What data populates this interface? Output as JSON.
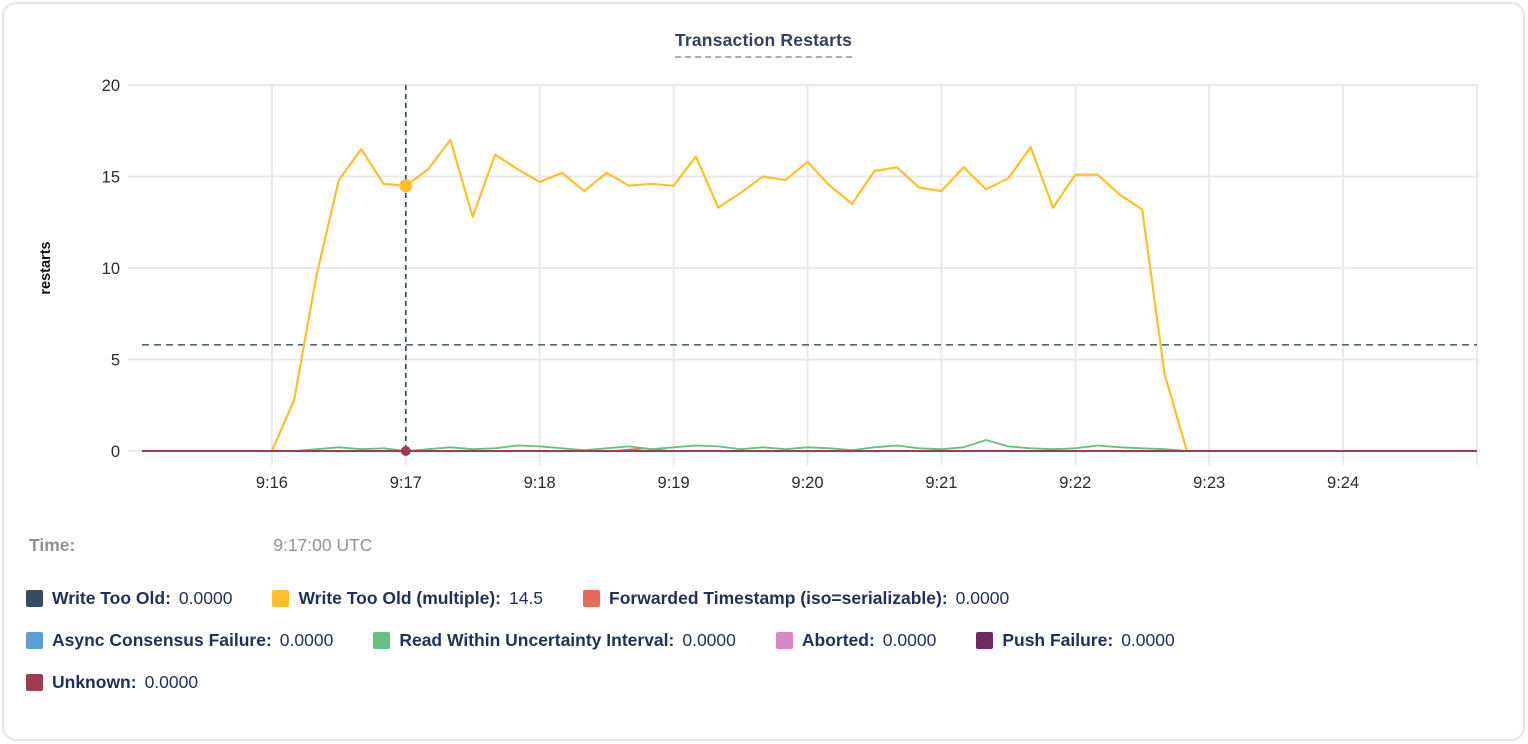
{
  "hover": {
    "time_label": "Time:",
    "time_value": "9:17:00 UTC"
  },
  "colors": {
    "write_too_old": "#3b4a63",
    "write_too_old_multiple": "#fdc02b",
    "forwarded_timestamp": "#e8695d",
    "async_consensus_failure": "#5c9fd4",
    "read_within_uncertainty": "#65c27e",
    "aborted": "#d787c1",
    "push_failure": "#6f2b62",
    "unknown": "#9e3d51",
    "threshold_line": "#51677a",
    "crosshair": "#2e4a5c",
    "gridline": "#e9e9e9",
    "axis_text": "#2b2b2b",
    "title_text": "#33415e"
  },
  "chart_data": {
    "type": "line",
    "title": "Transaction Restarts",
    "xlabel": "",
    "ylabel": "restarts",
    "ylim": [
      0,
      20
    ],
    "y_ticks": [
      0,
      5,
      10,
      15,
      20
    ],
    "xlim_minutes_after_9": [
      15.03,
      25.0
    ],
    "x_ticks": [
      {
        "t": 16,
        "label": "9:16"
      },
      {
        "t": 17,
        "label": "9:17"
      },
      {
        "t": 18,
        "label": "9:18"
      },
      {
        "t": 19,
        "label": "9:19"
      },
      {
        "t": 20,
        "label": "9:20"
      },
      {
        "t": 21,
        "label": "9:21"
      },
      {
        "t": 22,
        "label": "9:22"
      },
      {
        "t": 23,
        "label": "9:23"
      },
      {
        "t": 24,
        "label": "9:24"
      },
      {
        "t": 25,
        "label": ""
      }
    ],
    "grid": true,
    "legend_position": "bottom",
    "threshold_dashed_y": 5.8,
    "crosshair": {
      "t": 17,
      "time": "9:17:00 UTC",
      "dots": [
        {
          "series": "Write Too Old (multiple)",
          "value": 14.5,
          "color": "#fdc02b",
          "r": 6.5
        },
        {
          "series": "Unknown",
          "value": 0,
          "color": "#9e3d51",
          "r": 5
        }
      ]
    },
    "series": [
      {
        "name": "Write Too Old",
        "color": "#3b4a63",
        "width": 1.8,
        "points": [
          [
            15.03,
            0
          ],
          [
            25.0,
            0
          ]
        ]
      },
      {
        "name": "Write Too Old (multiple)",
        "color": "#fdc02b",
        "width": 2.2,
        "start": 16,
        "step_min": 0.1666667,
        "values": [
          0,
          2.8,
          9.6,
          14.8,
          16.5,
          14.6,
          14.5,
          15.4,
          17.0,
          12.8,
          16.2,
          15.4,
          14.7,
          15.2,
          14.2,
          15.2,
          14.5,
          14.6,
          14.5,
          16.1,
          13.3,
          14.1,
          15.0,
          14.8,
          15.8,
          14.5,
          13.5,
          15.3,
          15.5,
          14.4,
          14.2,
          15.5,
          14.3,
          14.9,
          16.6,
          13.3,
          15.1,
          15.1,
          14.0,
          13.2,
          4.2,
          0
        ]
      },
      {
        "name": "Forwarded Timestamp (iso=serializable)",
        "color": "#e8695d",
        "width": 1.8,
        "points": [
          [
            18.55,
            0
          ],
          [
            18.78,
            0.14
          ],
          [
            18.97,
            0
          ]
        ]
      },
      {
        "name": "Async Consensus Failure",
        "color": "#5c9fd4",
        "width": 1.8,
        "points": [
          [
            15.03,
            0
          ],
          [
            25.0,
            0
          ]
        ]
      },
      {
        "name": "Read Within Uncertainty Interval",
        "color": "#65c27e",
        "width": 1.8,
        "start": 16,
        "step_min": 0.1666667,
        "values": [
          0,
          0,
          0.1,
          0.2,
          0.1,
          0.15,
          0,
          0.1,
          0.2,
          0.1,
          0.15,
          0.3,
          0.25,
          0.15,
          0.05,
          0.15,
          0.25,
          0.1,
          0.2,
          0.3,
          0.25,
          0.1,
          0.2,
          0.1,
          0.2,
          0.15,
          0.05,
          0.2,
          0.3,
          0.15,
          0.1,
          0.2,
          0.6,
          0.25,
          0.15,
          0.1,
          0.15,
          0.3,
          0.2,
          0.15,
          0.1,
          0
        ]
      },
      {
        "name": "Aborted",
        "color": "#d787c1",
        "width": 1.8,
        "points": [
          [
            15.03,
            0
          ],
          [
            25.0,
            0
          ]
        ]
      },
      {
        "name": "Push Failure",
        "color": "#6f2b62",
        "width": 1.8,
        "points": [
          [
            15.03,
            0
          ],
          [
            25.0,
            0
          ]
        ]
      },
      {
        "name": "Unknown",
        "color": "#9e3d51",
        "width": 2,
        "points": [
          [
            15.03,
            0
          ],
          [
            25.0,
            0
          ]
        ]
      }
    ]
  },
  "legend": {
    "rows": [
      [
        {
          "label": "Write Too Old:",
          "value": "0.0000",
          "color": "#3b4a63"
        },
        {
          "label": "Write Too Old (multiple):",
          "value": "14.5",
          "color": "#fdc02b"
        },
        {
          "label": "Forwarded Timestamp (iso=serializable):",
          "value": "0.0000",
          "color": "#e8695d"
        }
      ],
      [
        {
          "label": "Async Consensus Failure:",
          "value": "0.0000",
          "color": "#5c9fd4"
        },
        {
          "label": "Read Within Uncertainty Interval:",
          "value": "0.0000",
          "color": "#65c27e"
        },
        {
          "label": "Aborted:",
          "value": "0.0000",
          "color": "#d787c1"
        },
        {
          "label": "Push Failure:",
          "value": "0.0000",
          "color": "#6f2b62"
        }
      ],
      [
        {
          "label": "Unknown:",
          "value": "0.0000",
          "color": "#9e3d51"
        }
      ]
    ]
  }
}
